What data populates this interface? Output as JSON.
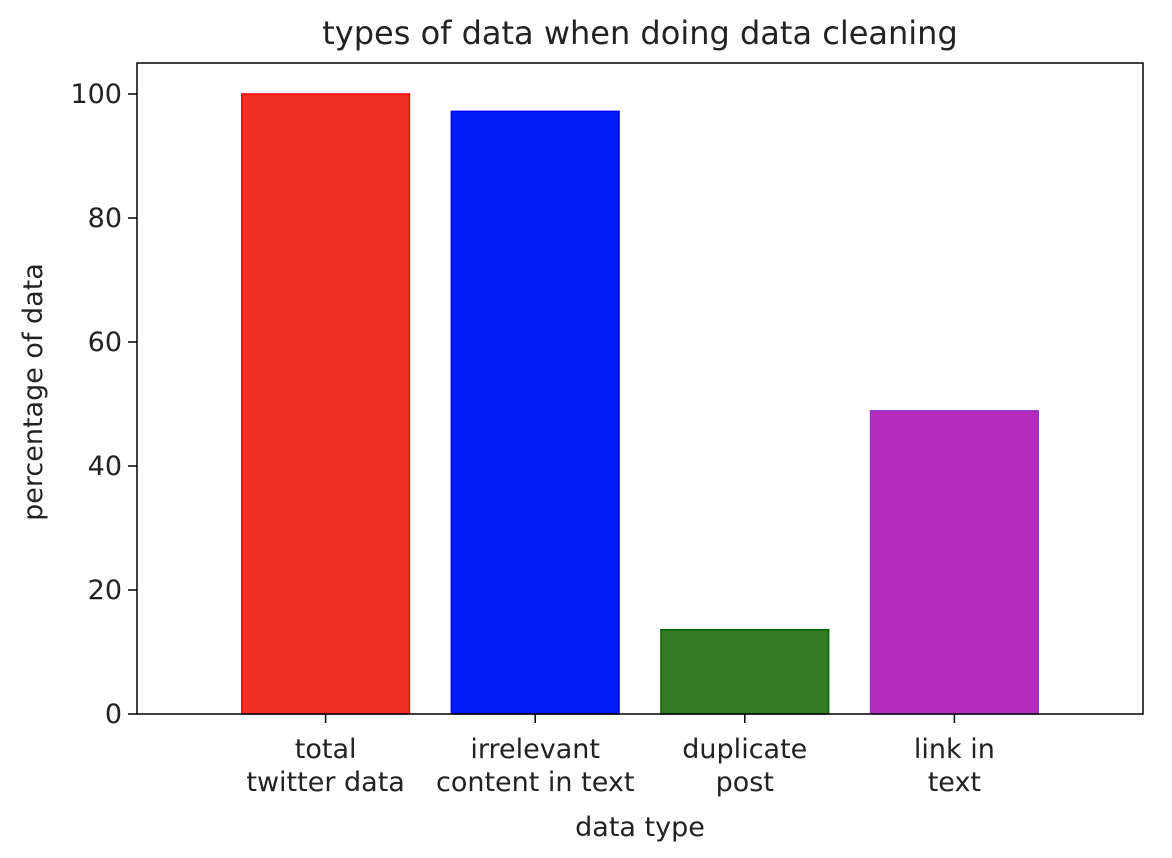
{
  "chart_data": {
    "type": "bar",
    "title": "types of data when doing data cleaning",
    "xlabel": "data type",
    "ylabel": "percentage of data",
    "categories": [
      [
        "total",
        "twitter data"
      ],
      [
        "irrelevant",
        "content in text"
      ],
      [
        "duplicate",
        "post"
      ],
      [
        "link in",
        "text"
      ]
    ],
    "values": [
      100,
      97.2,
      13.6,
      48.9
    ],
    "colors": [
      "#ee3124",
      "#0019f5",
      "#337a22",
      "#b22bbb"
    ],
    "edge_colors": [
      "#ff0000",
      "#0000ff",
      "#006400",
      "#9932cc"
    ],
    "ylim": [
      0,
      105
    ],
    "yticks": [
      0,
      20,
      40,
      60,
      80,
      100
    ],
    "grid": false,
    "legend": "none"
  }
}
